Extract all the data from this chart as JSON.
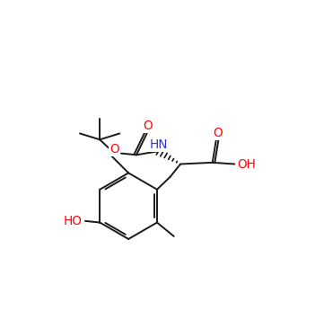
{
  "bg_color": "#ffffff",
  "bond_color": "#1a1a1a",
  "oxygen_color": "#ff0000",
  "nitrogen_color": "#3333cc",
  "lw": 1.4,
  "figsize": [
    3.51,
    3.46
  ],
  "dpi": 100,
  "xlim": [
    0,
    10
  ],
  "ylim": [
    0,
    10
  ]
}
